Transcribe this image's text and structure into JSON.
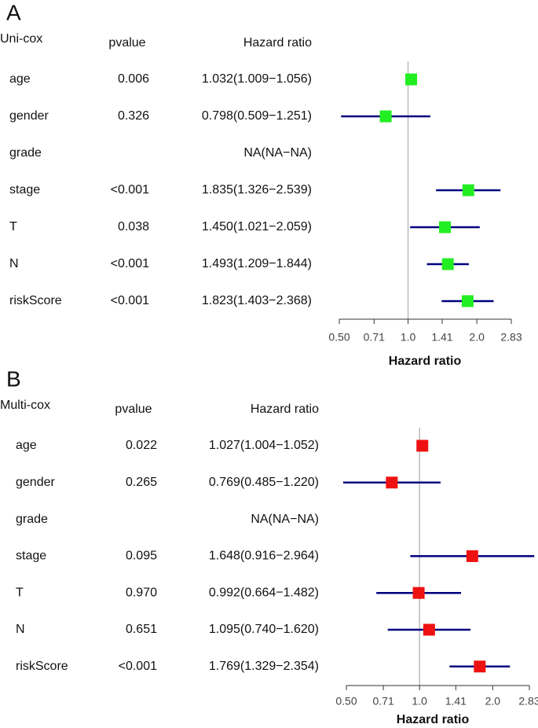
{
  "chart_data": [
    {
      "type": "forest",
      "panel": "A",
      "title": "Uni-cox",
      "columns": [
        "pvalue",
        "Hazard ratio"
      ],
      "categories": [
        "age",
        "gender",
        "grade",
        "stage",
        "T",
        "N",
        "riskScore"
      ],
      "pvalues": [
        "0.006",
        "0.326",
        null,
        "<0.001",
        "0.038",
        "<0.001",
        "<0.001"
      ],
      "values": [
        1.032,
        0.798,
        null,
        1.835,
        1.45,
        1.493,
        1.823
      ],
      "lower": [
        1.009,
        0.509,
        null,
        1.326,
        1.021,
        1.209,
        1.403
      ],
      "upper": [
        1.056,
        1.251,
        null,
        2.539,
        2.059,
        1.844,
        2.368
      ],
      "value_labels": [
        "1.032(1.009−1.056)",
        "0.798(0.509−1.251)",
        "NA(NA−NA)",
        "1.835(1.326−2.539)",
        "1.450(1.021−2.059)",
        "1.493(1.209−1.844)",
        "1.823(1.403−2.368)"
      ],
      "color": "#22ee22",
      "ci_color": "#00007f",
      "x_label": "Hazard ratio",
      "log_x": true,
      "xlim": [
        0.5,
        2.83
      ],
      "xticks": [
        {
          "value": 0.5,
          "label": "0.50"
        },
        0.71,
        {
          "value": 1,
          "label": "1.0"
        },
        1.41,
        {
          "value": 2,
          "label": "2.0"
        },
        2.83
      ]
    },
    {
      "type": "forest",
      "panel": "B",
      "title": "Multi-cox",
      "columns": [
        "pvalue",
        "Hazard ratio"
      ],
      "categories": [
        "age",
        "gender",
        "grade",
        "stage",
        "T",
        "N",
        "riskScore"
      ],
      "pvalues": [
        "0.022",
        "0.265",
        null,
        "0.095",
        "0.970",
        "0.651",
        "<0.001"
      ],
      "values": [
        1.027,
        0.769,
        null,
        1.648,
        0.992,
        1.095,
        1.769
      ],
      "lower": [
        1.004,
        0.485,
        null,
        0.916,
        0.664,
        0.74,
        1.329
      ],
      "upper": [
        1.052,
        1.22,
        null,
        2.964,
        1.482,
        1.62,
        2.354
      ],
      "value_labels": [
        "1.027(1.004−1.052)",
        "0.769(0.485−1.220)",
        "NA(NA−NA)",
        "1.648(0.916−2.964)",
        "0.992(0.664−1.482)",
        "1.095(0.740−1.620)",
        "1.769(1.329−2.354)"
      ],
      "color": "#ee1111",
      "ci_color": "#00007f",
      "x_label": "Hazard ratio",
      "log_x": true,
      "xlim": [
        0.5,
        2.83
      ],
      "xticks": [
        {
          "value": 0.5,
          "label": "0.50"
        },
        0.71,
        {
          "value": 1,
          "label": "1.0"
        },
        1.41,
        {
          "value": 2,
          "label": "2.0"
        },
        2.83
      ]
    }
  ]
}
